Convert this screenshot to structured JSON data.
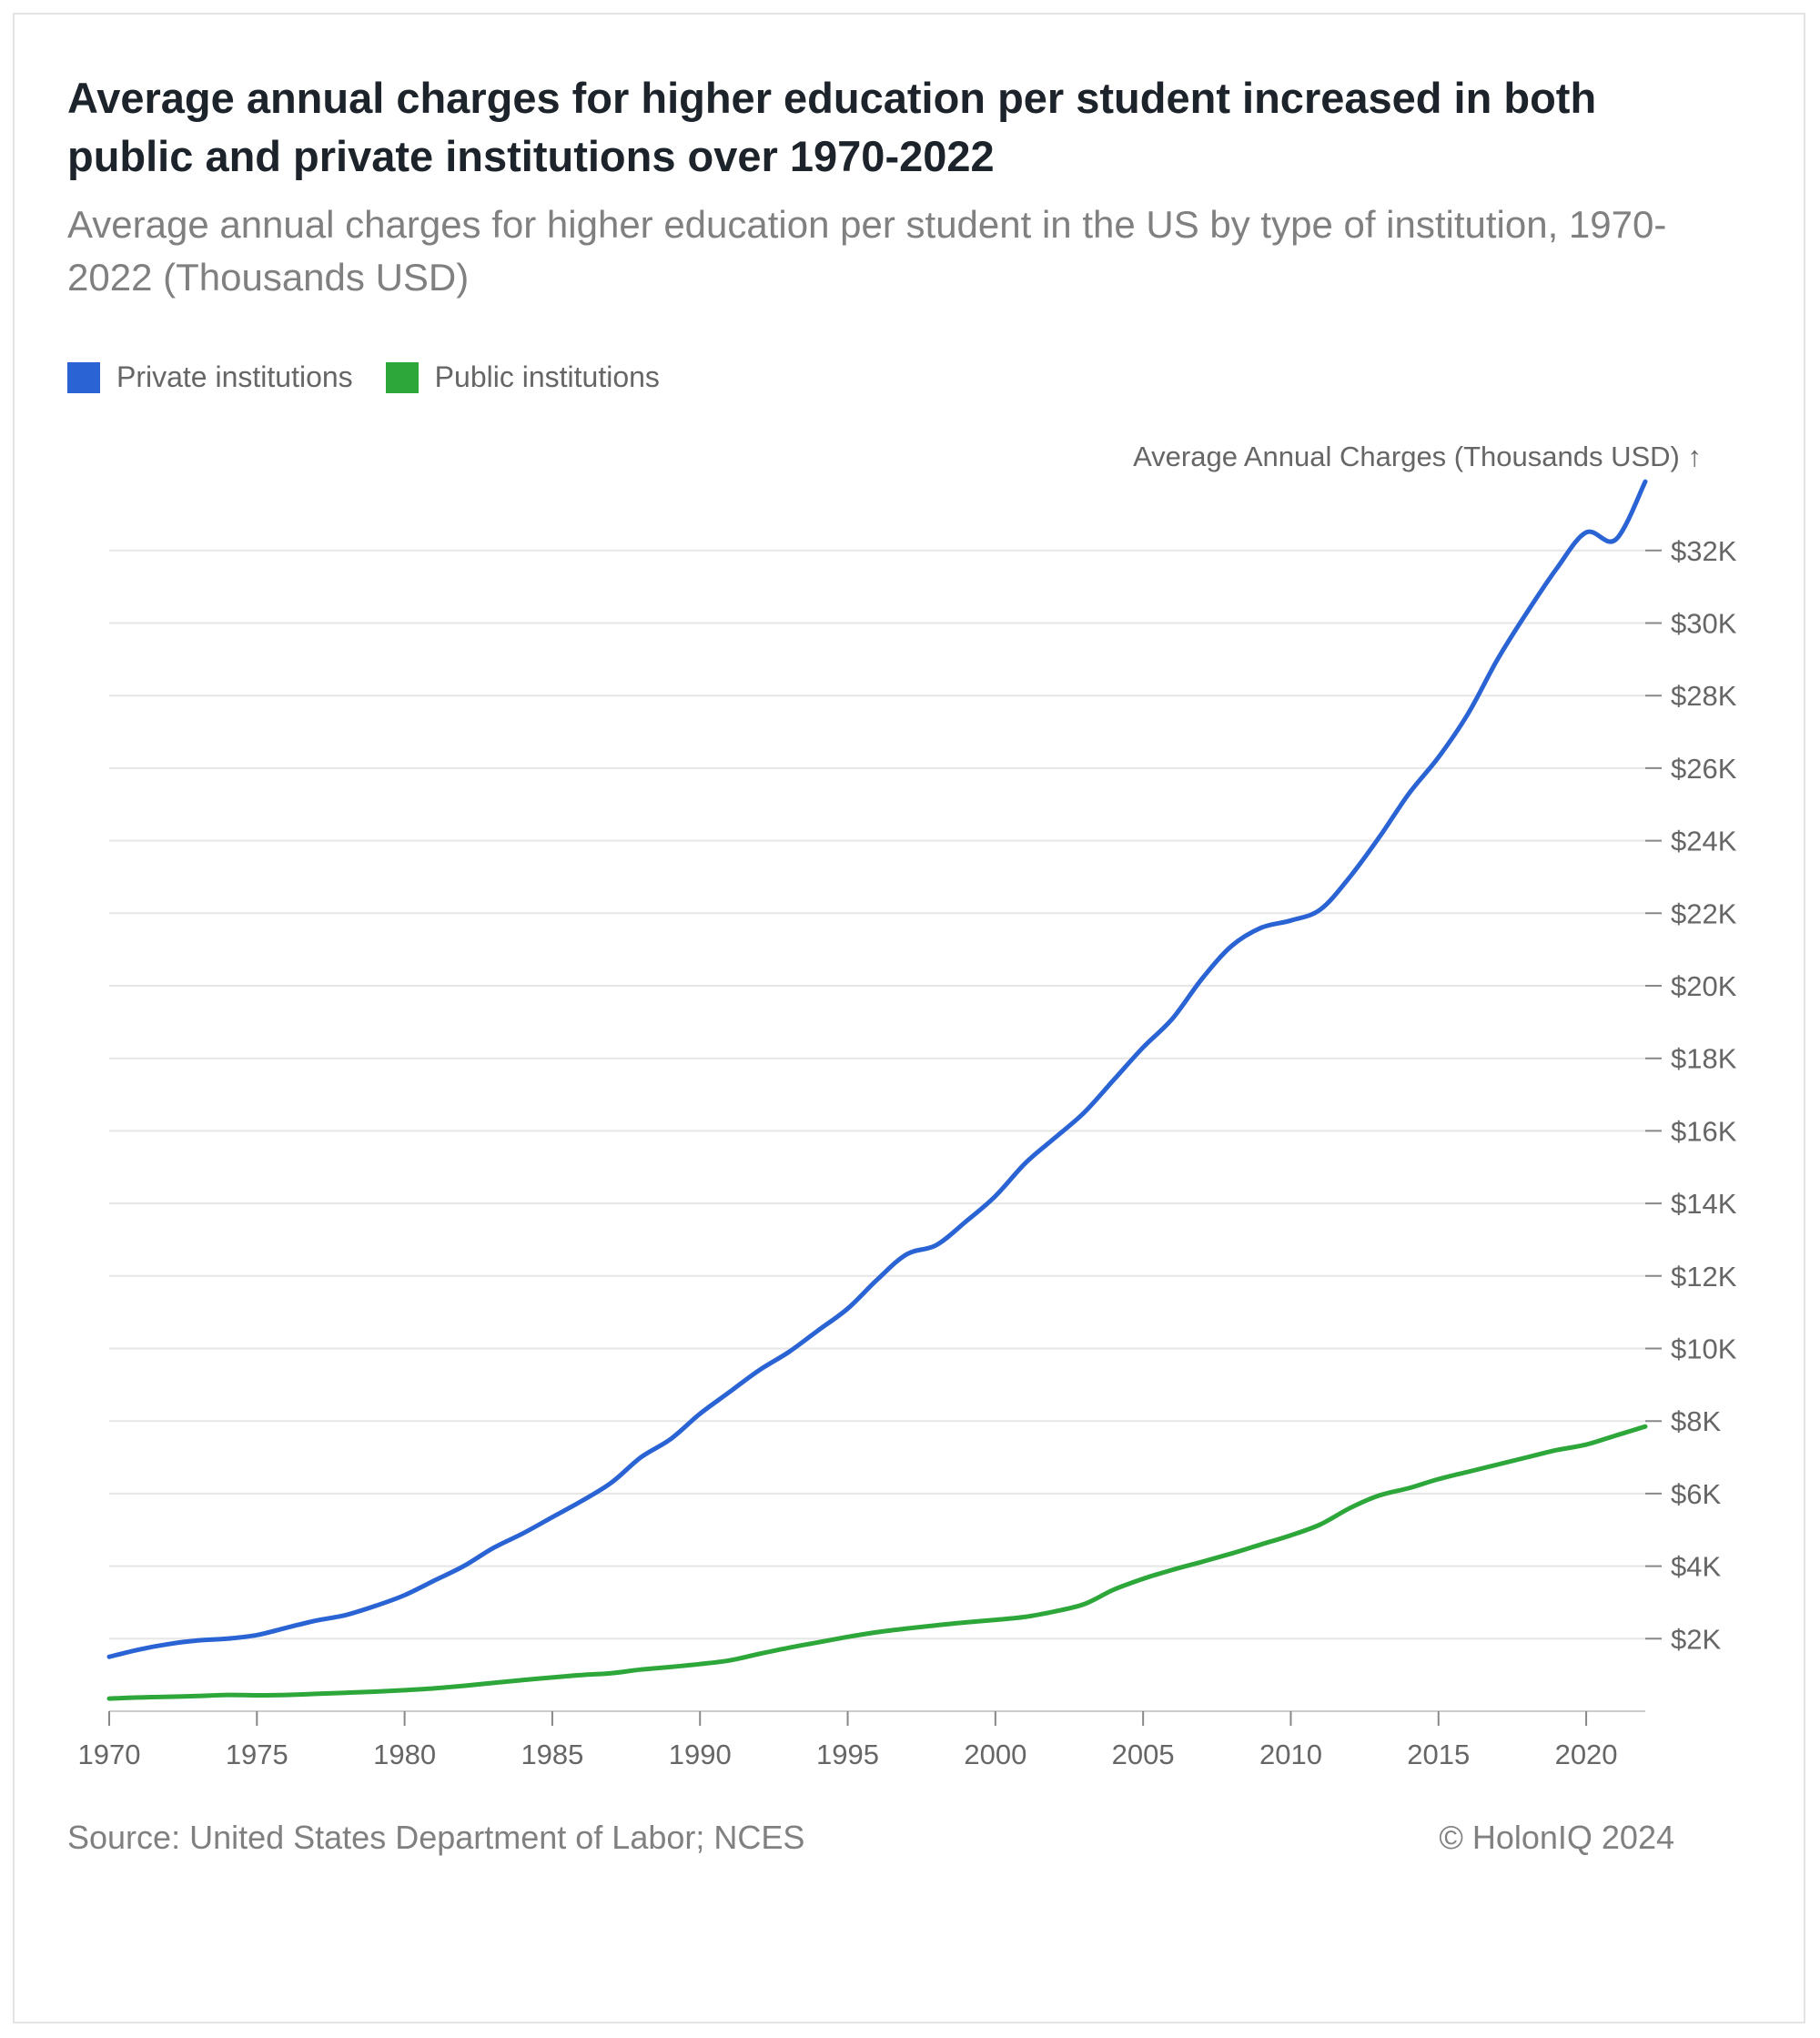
{
  "title": "Average annual charges for higher education per student increased in both public and private institutions over 1970-2022",
  "subtitle": "Average annual charges for higher education per student in the US by type of institution, 1970-2022 (Thousands USD)",
  "source": "Source: United States Department of Labor; NCES",
  "copyright": "© HolonIQ 2024",
  "colors": {
    "private": "#2a63d4",
    "public": "#2da63a",
    "grid": "#e6e6e6",
    "text": "#666666"
  },
  "chart_data": {
    "type": "line",
    "ylabel": "Average Annual Charges (Thousands USD) ↑",
    "xlim": [
      1970,
      2022
    ],
    "ylim": [
      0,
      34
    ],
    "x_ticks": [
      1970,
      1975,
      1980,
      1985,
      1990,
      1995,
      2000,
      2005,
      2010,
      2015,
      2020
    ],
    "y_ticks": [
      2,
      4,
      6,
      8,
      10,
      12,
      14,
      16,
      18,
      20,
      22,
      24,
      26,
      28,
      30,
      32
    ],
    "y_tick_labels": [
      "$2K",
      "$4K",
      "$6K",
      "$8K",
      "$10K",
      "$12K",
      "$14K",
      "$16K",
      "$18K",
      "$20K",
      "$22K",
      "$24K",
      "$26K",
      "$28K",
      "$30K",
      "$32K"
    ],
    "legend_position": "top-left",
    "grid": true,
    "series": [
      {
        "name": "Private institutions",
        "color": "#2a63d4",
        "x": [
          1970,
          1971,
          1972,
          1973,
          1974,
          1975,
          1976,
          1977,
          1978,
          1979,
          1980,
          1981,
          1982,
          1983,
          1984,
          1985,
          1986,
          1987,
          1988,
          1989,
          1990,
          1991,
          1992,
          1993,
          1994,
          1995,
          1996,
          1997,
          1998,
          1999,
          2000,
          2001,
          2002,
          2003,
          2004,
          2005,
          2006,
          2007,
          2008,
          2009,
          2010,
          2011,
          2012,
          2013,
          2014,
          2015,
          2016,
          2017,
          2018,
          2019,
          2020,
          2021,
          2022
        ],
        "values": [
          1.5,
          1.7,
          1.85,
          1.95,
          2.0,
          2.1,
          2.3,
          2.5,
          2.65,
          2.9,
          3.2,
          3.6,
          4.0,
          4.5,
          4.9,
          5.35,
          5.8,
          6.3,
          7.0,
          7.5,
          8.2,
          8.8,
          9.4,
          9.9,
          10.5,
          11.1,
          11.9,
          12.6,
          12.85,
          13.5,
          14.2,
          15.1,
          15.8,
          16.5,
          17.4,
          18.3,
          19.1,
          20.2,
          21.1,
          21.6,
          21.8,
          22.1,
          23.0,
          24.1,
          25.3,
          26.3,
          27.5,
          29.0,
          30.3,
          31.5,
          32.5,
          32.3,
          33.9
        ]
      },
      {
        "name": "Public institutions",
        "color": "#2da63a",
        "x": [
          1970,
          1971,
          1972,
          1973,
          1974,
          1975,
          1976,
          1977,
          1978,
          1979,
          1980,
          1981,
          1982,
          1983,
          1984,
          1985,
          1986,
          1987,
          1988,
          1989,
          1990,
          1991,
          1992,
          1993,
          1994,
          1995,
          1996,
          1997,
          1998,
          1999,
          2000,
          2001,
          2002,
          2003,
          2004,
          2005,
          2006,
          2007,
          2008,
          2009,
          2010,
          2011,
          2012,
          2013,
          2014,
          2015,
          2016,
          2017,
          2018,
          2019,
          2020,
          2021,
          2022
        ],
        "values": [
          0.35,
          0.38,
          0.4,
          0.42,
          0.45,
          0.44,
          0.45,
          0.48,
          0.51,
          0.54,
          0.58,
          0.63,
          0.7,
          0.78,
          0.86,
          0.93,
          1.0,
          1.05,
          1.15,
          1.22,
          1.3,
          1.4,
          1.58,
          1.75,
          1.9,
          2.05,
          2.18,
          2.28,
          2.37,
          2.45,
          2.52,
          2.6,
          2.75,
          2.95,
          3.35,
          3.65,
          3.9,
          4.12,
          4.35,
          4.6,
          4.85,
          5.15,
          5.6,
          5.95,
          6.15,
          6.4,
          6.6,
          6.8,
          7.0,
          7.2,
          7.35,
          7.6,
          7.85
        ]
      }
    ]
  }
}
